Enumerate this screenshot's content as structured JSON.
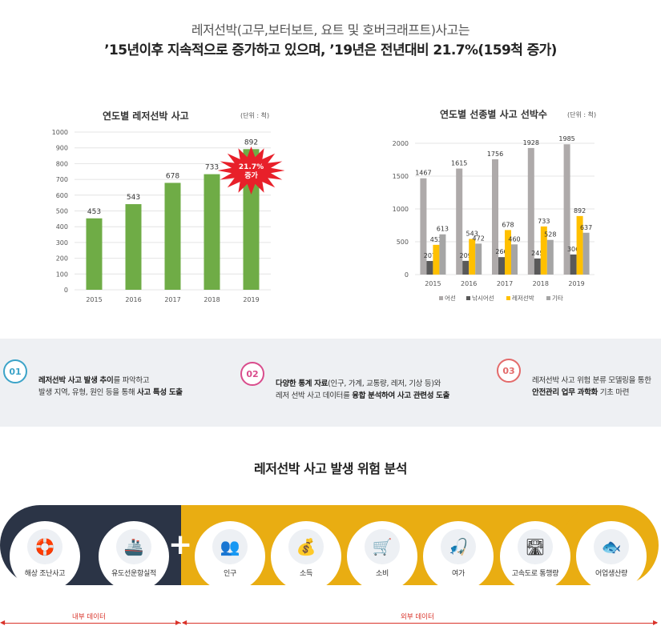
{
  "header": {
    "line1": "레저선박(고무,보터보트, 요트 및 호버크래프트)사고는",
    "line2": "’15년이후 지속적으로 증가하고 있으며, ’19년은 전년대비 21.7%(159척 증가)"
  },
  "chart_data": [
    {
      "type": "bar",
      "title": "연도별 레저선박 사고",
      "unit": "(단위 : 척)",
      "categories": [
        "2015",
        "2016",
        "2017",
        "2018",
        "2019"
      ],
      "values": [
        453,
        543,
        678,
        733,
        892
      ],
      "ylim": [
        0,
        1000
      ],
      "yticks": [
        0,
        100,
        200,
        300,
        400,
        500,
        600,
        700,
        800,
        900,
        1000
      ],
      "color": "#6fac46",
      "grid": true,
      "annotation": {
        "line1": "21.7%",
        "line2": "증가",
        "color": "#e8202a"
      }
    },
    {
      "type": "bar",
      "title": "연도별 선종별 사고 선박수",
      "unit": "(단위 : 척)",
      "categories": [
        "2015",
        "2016",
        "2017",
        "2018",
        "2019"
      ],
      "ylim": [
        0,
        2000
      ],
      "yticks": [
        0,
        500,
        1000,
        1500,
        2000
      ],
      "grid": true,
      "legend_position": "bottom",
      "series": [
        {
          "name": "어선",
          "values": [
            1467,
            1615,
            1756,
            1928,
            1985
          ],
          "color": "#aeaaaa"
        },
        {
          "name": "낚시어선",
          "values": [
            207,
            209,
            266,
            245,
            306
          ],
          "color": "#595959"
        },
        {
          "name": "레저선박",
          "values": [
            453,
            543,
            678,
            733,
            892
          ],
          "color": "#ffc000"
        },
        {
          "name": "기타",
          "values": [
            613,
            472,
            460,
            528,
            637
          ],
          "color": "#a5a5a5"
        }
      ]
    }
  ],
  "features": [
    {
      "num": "01",
      "color": "#3ba3c8",
      "l1_b": "레저선박 사고 발생 추이",
      "l1": "를 파악하고",
      "l2": "발생 지역, 유형, 원인 등을 통해 ",
      "l2_b": "사고 특성 도출"
    },
    {
      "num": "02",
      "color": "#d94c8c",
      "l1_b": "다양한 통계 자료",
      "l1": "(인구, 가계, 교통량, 레저, 기상 등)와",
      "l2": "레저 선박 사고 데이터를 ",
      "l2_b": "융합 분석하여 사고 관련성 도출"
    },
    {
      "num": "03",
      "color": "#e36a6a",
      "l1": "레저선박 사고 위험 분류 모델링을 통한",
      "l2_b": "안전관리 업무 과학화",
      "l2": " 기초 마련"
    }
  ],
  "risk": {
    "title": "레저선박 사고 발생 위험 분석",
    "plus": "+",
    "internal_label": "내부 데이터",
    "external_label": "외부 데이터",
    "items": [
      {
        "label": "해상 조난사고",
        "icon": "rescue-icon"
      },
      {
        "label": "유도선운항실적",
        "icon": "ship-icon"
      },
      {
        "label": "인구",
        "icon": "people-icon"
      },
      {
        "label": "소득",
        "icon": "income-icon"
      },
      {
        "label": "소비",
        "icon": "consumption-icon"
      },
      {
        "label": "여가",
        "icon": "leisure-icon"
      },
      {
        "label": "고속도로 통행량",
        "icon": "highway-icon"
      },
      {
        "label": "어업생산량",
        "icon": "fishery-icon"
      }
    ]
  }
}
